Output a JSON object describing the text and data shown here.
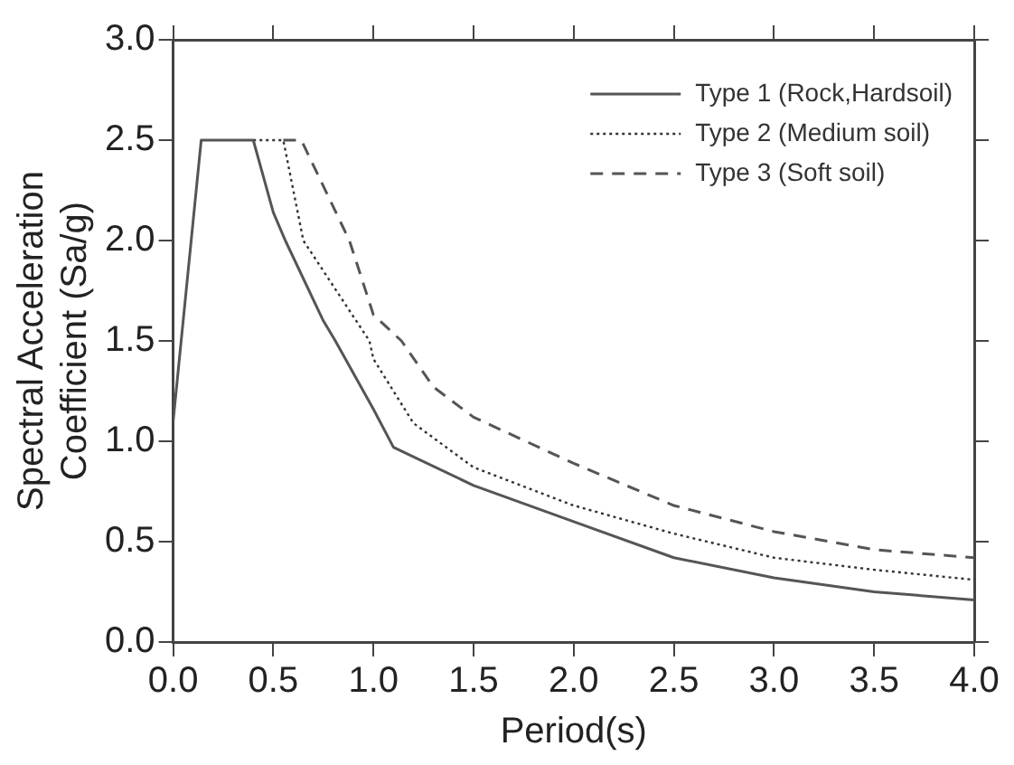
{
  "chart_data": {
    "type": "line",
    "xlabel": "Period(s)",
    "ylabel": "Spectral Acceleration\nCoefficient (Sa/g)",
    "xlim": [
      0,
      4
    ],
    "ylim": [
      0,
      3
    ],
    "xticks": [
      {
        "value": 0,
        "label": "0.0"
      },
      {
        "value": 0.5,
        "label": "0.5"
      },
      {
        "value": 1,
        "label": "1.0"
      },
      {
        "value": 1.5,
        "label": "1.5"
      },
      {
        "value": 2,
        "label": "2.0"
      },
      {
        "value": 2.5,
        "label": "2.5"
      },
      {
        "value": 3,
        "label": "3.0"
      },
      {
        "value": 3.5,
        "label": "3.5"
      },
      {
        "value": 4,
        "label": "4.0"
      }
    ],
    "yticks": [
      {
        "value": 0,
        "label": "0.0"
      },
      {
        "value": 0.5,
        "label": "0.5"
      },
      {
        "value": 1,
        "label": "1.0"
      },
      {
        "value": 1.5,
        "label": "1.5"
      },
      {
        "value": 2,
        "label": "2.0"
      },
      {
        "value": 2.5,
        "label": "2.5"
      },
      {
        "value": 3,
        "label": "3.0"
      }
    ],
    "grid": false,
    "legend": "top right",
    "marker": "none",
    "series": [
      {
        "name": "Type 1 (Rock,Hardsoil)",
        "color": "#555555",
        "line_style": "solid",
        "x": [
          0,
          0.14,
          0.4,
          0.5,
          0.56,
          0.75,
          0.81,
          1.0,
          1.1,
          1.5,
          2.0,
          2.5,
          3.0,
          3.5,
          4.0
        ],
        "values": [
          1.1,
          2.5,
          2.5,
          2.14,
          2.0,
          1.6,
          1.5,
          1.16,
          0.97,
          0.78,
          0.6,
          0.42,
          0.32,
          0.25,
          0.21
        ]
      },
      {
        "name": "Type 2 (Medium soil)",
        "color": "#333333",
        "line_style": "dotted",
        "x": [
          0.4,
          0.55,
          0.65,
          0.98,
          1.0,
          1.2,
          1.5,
          2.0,
          2.5,
          3.0,
          3.5,
          4.0
        ],
        "values": [
          2.5,
          2.5,
          2.0,
          1.5,
          1.41,
          1.09,
          0.87,
          0.68,
          0.54,
          0.42,
          0.36,
          0.31
        ]
      },
      {
        "name": "Type 3 (Soft soil)",
        "color": "#555555",
        "line_style": "dashed",
        "x": [
          0.55,
          0.64,
          0.88,
          1.0,
          1.14,
          1.3,
          1.5,
          2.0,
          2.5,
          3.0,
          3.5,
          4.0
        ],
        "values": [
          2.5,
          2.5,
          2.0,
          1.63,
          1.5,
          1.27,
          1.12,
          0.89,
          0.68,
          0.55,
          0.46,
          0.42
        ]
      }
    ]
  }
}
